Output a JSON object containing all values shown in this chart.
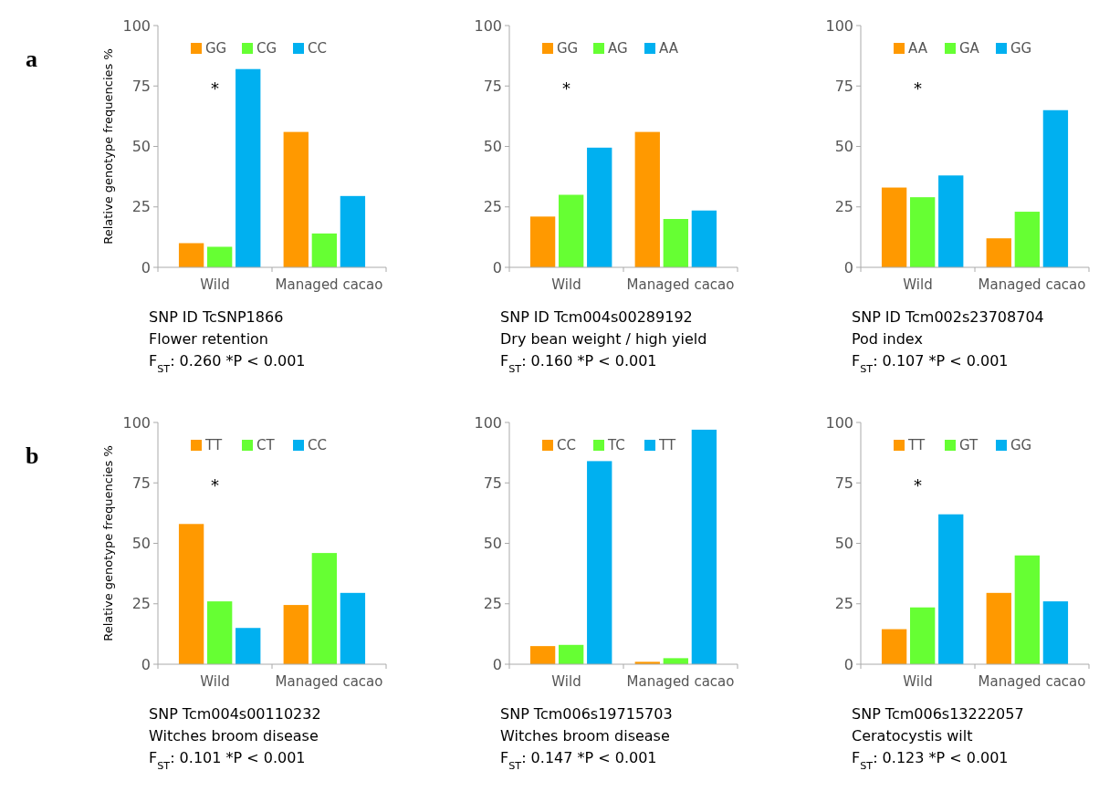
{
  "chart_data": [
    {
      "type": "bar",
      "title": "a",
      "ylabel": "Relative genotype frequencies %",
      "categories": [
        "Wild",
        "Managed cacao"
      ],
      "ylim": [
        0,
        100
      ],
      "yticks": [
        0,
        25,
        50,
        75,
        100
      ],
      "grid": false,
      "legend": "top",
      "series": [
        {
          "name": "GG",
          "color": "#ff9900",
          "values": [
            10,
            56
          ]
        },
        {
          "name": "CG",
          "color": "#66ff33",
          "values": [
            8.5,
            14
          ]
        },
        {
          "name": "CC",
          "color": "#00b0f0",
          "values": [
            82,
            29.5
          ]
        }
      ],
      "annotations": [
        "SNP ID TcSNP1866",
        "Flower retention",
        "F$_{ST}$: 0.260  *P < 0.001",
        "*"
      ]
    },
    {
      "type": "bar",
      "categories": [
        "Wild",
        "Managed cacao"
      ],
      "ylim": [
        0,
        100
      ],
      "yticks": [
        0,
        25,
        50,
        75,
        100
      ],
      "grid": false,
      "legend": "top",
      "series": [
        {
          "name": "GG",
          "color": "#ff9900",
          "values": [
            21,
            56
          ]
        },
        {
          "name": "AG",
          "color": "#66ff33",
          "values": [
            30,
            20
          ]
        },
        {
          "name": "AA",
          "color": "#00b0f0",
          "values": [
            49.5,
            23.5
          ]
        }
      ],
      "annotations": [
        "SNP ID Tcm004s00289192",
        "Dry bean weight / high yield",
        "F$_{ST}$: 0.160  *P < 0.001",
        "*"
      ]
    },
    {
      "type": "bar",
      "categories": [
        "Wild",
        "Managed cacao"
      ],
      "ylim": [
        0,
        100
      ],
      "yticks": [
        0,
        25,
        50,
        75,
        100
      ],
      "grid": false,
      "legend": "top",
      "series": [
        {
          "name": "AA",
          "color": "#ff9900",
          "values": [
            33,
            12
          ]
        },
        {
          "name": "GA",
          "color": "#66ff33",
          "values": [
            29,
            23
          ]
        },
        {
          "name": "GG",
          "color": "#00b0f0",
          "values": [
            38,
            65
          ]
        }
      ],
      "annotations": [
        "SNP ID Tcm002s23708704",
        "Pod index",
        "F$_{ST}$: 0.107  *P < 0.001",
        "*"
      ]
    },
    {
      "type": "bar",
      "title": "b",
      "ylabel": "Relative genotype frequencies %",
      "categories": [
        "Wild",
        "Managed cacao"
      ],
      "ylim": [
        0,
        100
      ],
      "yticks": [
        0,
        25,
        50,
        75,
        100
      ],
      "grid": false,
      "legend": "top",
      "series": [
        {
          "name": "TT",
          "color": "#ff9900",
          "values": [
            58,
            24.5
          ]
        },
        {
          "name": "CT",
          "color": "#66ff33",
          "values": [
            26,
            46
          ]
        },
        {
          "name": "CC",
          "color": "#00b0f0",
          "values": [
            15,
            29.5
          ]
        }
      ],
      "annotations": [
        "SNP Tcm004s00110232",
        "Witches broom disease",
        "F$_{ST}$: 0.101  *P < 0.001",
        "*"
      ]
    },
    {
      "type": "bar",
      "categories": [
        "Wild",
        "Managed cacao"
      ],
      "ylim": [
        0,
        100
      ],
      "yticks": [
        0,
        25,
        50,
        75,
        100
      ],
      "grid": false,
      "legend": "top",
      "series": [
        {
          "name": "CC",
          "color": "#ff9900",
          "values": [
            7.5,
            1
          ]
        },
        {
          "name": "TC",
          "color": "#66ff33",
          "values": [
            8,
            2.5
          ]
        },
        {
          "name": "TT",
          "color": "#00b0f0",
          "values": [
            84,
            97
          ]
        }
      ],
      "annotations": [
        "SNP Tcm006s19715703",
        "Witches broom disease",
        "F$_{ST}$: 0.147  *P < 0.001"
      ]
    },
    {
      "type": "bar",
      "categories": [
        "Wild",
        "Managed cacao"
      ],
      "ylim": [
        0,
        100
      ],
      "yticks": [
        0,
        25,
        50,
        75,
        100
      ],
      "grid": false,
      "legend": "top",
      "series": [
        {
          "name": "TT",
          "color": "#ff9900",
          "values": [
            14.5,
            29.5
          ]
        },
        {
          "name": "GT",
          "color": "#66ff33",
          "values": [
            23.5,
            45
          ]
        },
        {
          "name": "GG",
          "color": "#00b0f0",
          "values": [
            62,
            26
          ]
        }
      ],
      "annotations": [
        "SNP Tcm006s13222057",
        "Ceratocystis wilt",
        "F$_{ST}$: 0.123  *P < 0.001",
        "*"
      ]
    }
  ]
}
